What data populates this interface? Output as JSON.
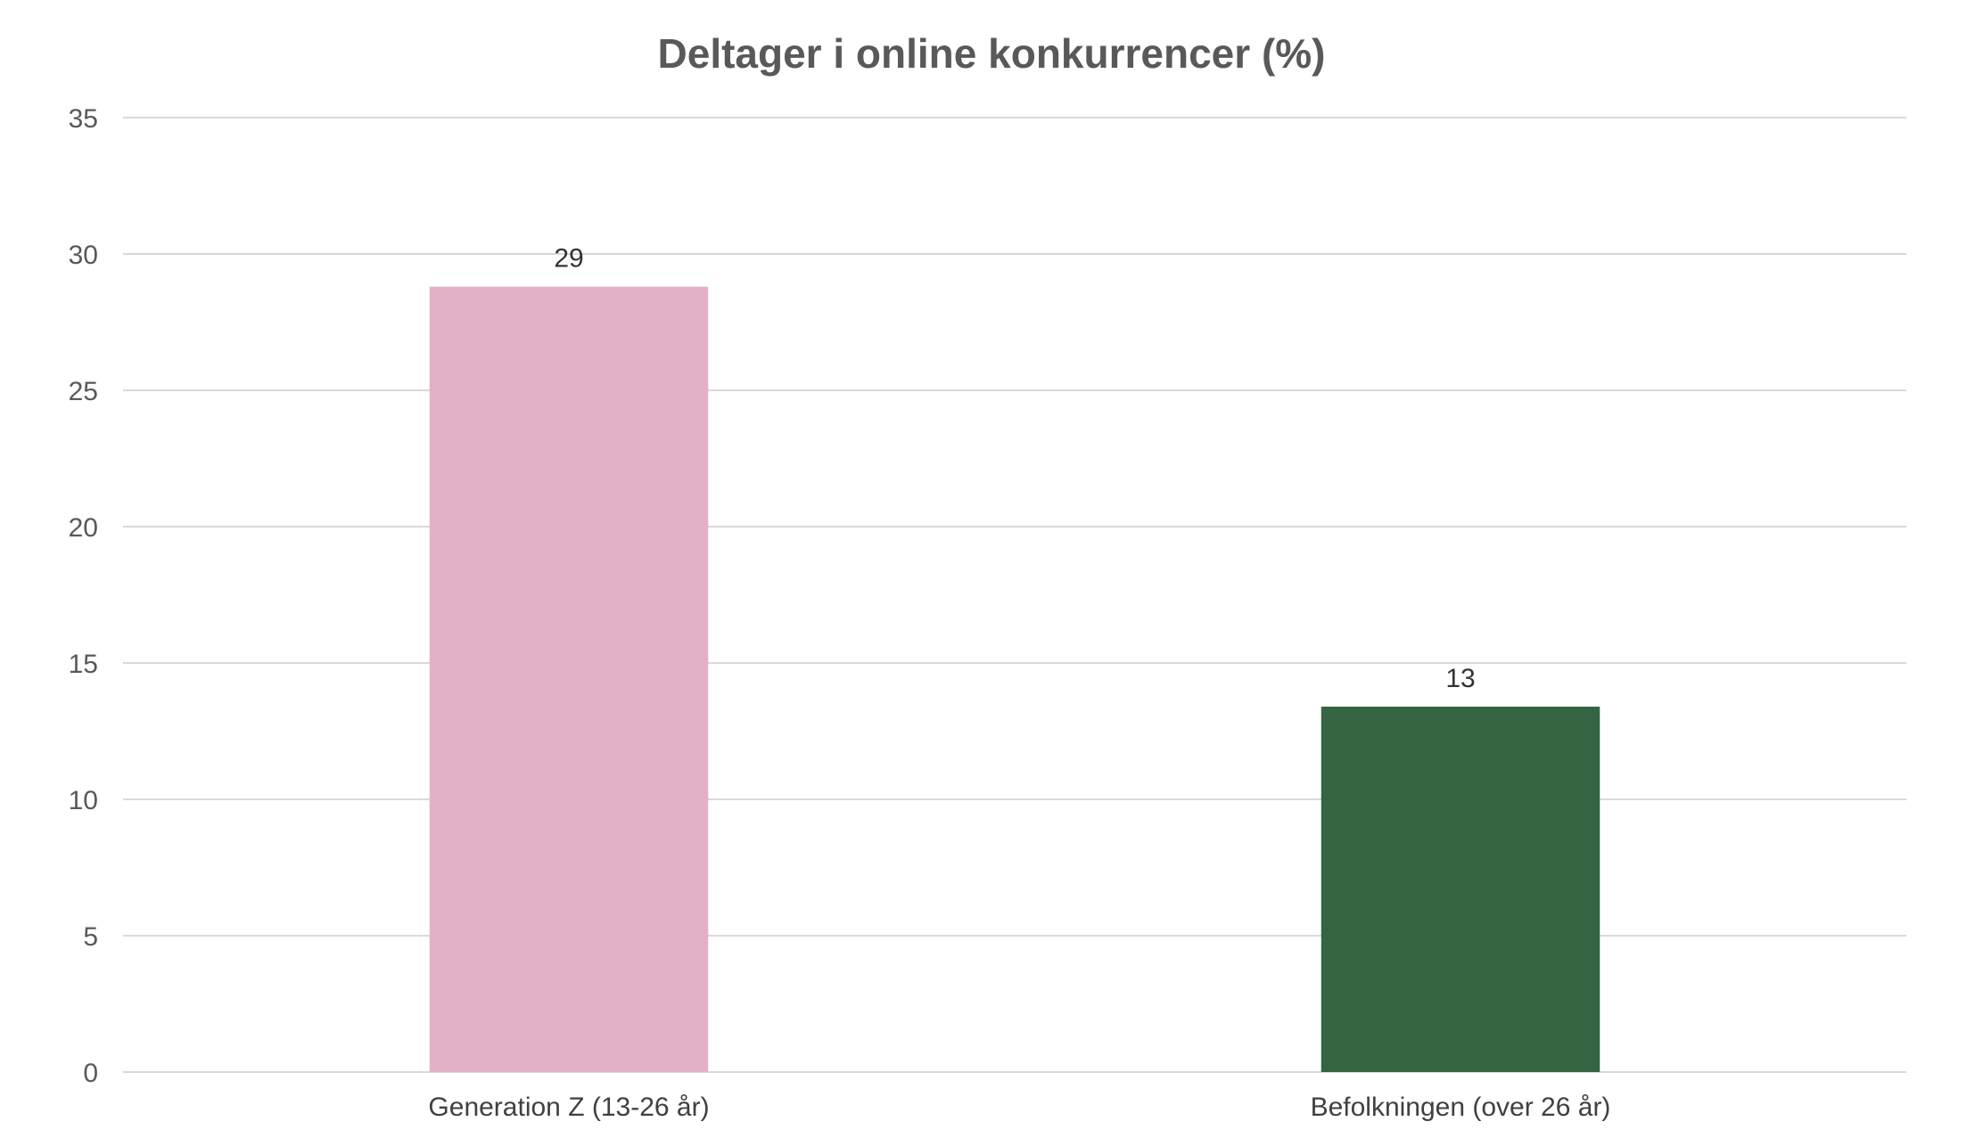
{
  "chart_data": {
    "type": "bar",
    "title": "Deltager i online konkurrencer (%)",
    "xlabel": "",
    "ylabel": "",
    "categories": [
      "Generation Z (13-26 år)",
      "Befolkningen (over 26 år)"
    ],
    "values": [
      28.8,
      13.4
    ],
    "data_labels": [
      "29",
      "13"
    ],
    "colors": [
      "#e4b0c8",
      "#356442"
    ],
    "ylim": [
      0,
      35
    ],
    "yticks": [
      0,
      5,
      10,
      15,
      20,
      25,
      30,
      35
    ],
    "grid": true,
    "legend": "none"
  }
}
